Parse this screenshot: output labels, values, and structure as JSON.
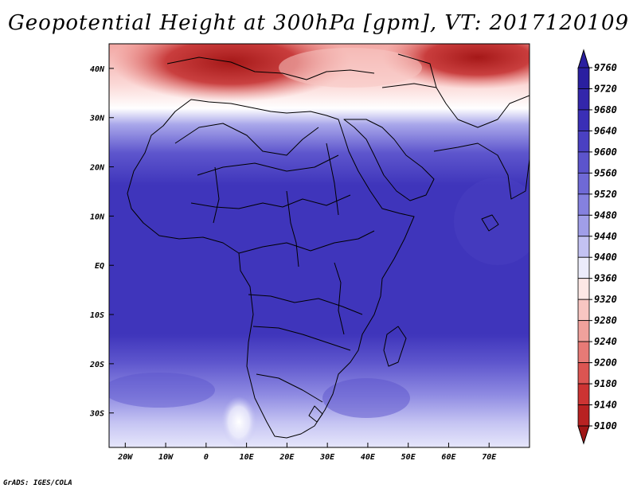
{
  "title": "Geopotential Height at 300hPa [gpm], VT: 2017120109",
  "credit": "GrADS: IGES/COLA",
  "map": {
    "lon_range": [
      -24,
      80
    ],
    "lat_range": [
      -37,
      45
    ],
    "x_ticks": [
      {
        "lon": -20,
        "label": "20W"
      },
      {
        "lon": -10,
        "label": "10W"
      },
      {
        "lon": 0,
        "label": "0"
      },
      {
        "lon": 10,
        "label": "10E"
      },
      {
        "lon": 20,
        "label": "20E"
      },
      {
        "lon": 30,
        "label": "30E"
      },
      {
        "lon": 40,
        "label": "40E"
      },
      {
        "lon": 50,
        "label": "50E"
      },
      {
        "lon": 60,
        "label": "60E"
      },
      {
        "lon": 70,
        "label": "70E"
      }
    ],
    "y_ticks": [
      {
        "lat": 40,
        "label": "40N"
      },
      {
        "lat": 30,
        "label": "30N"
      },
      {
        "lat": 20,
        "label": "20N"
      },
      {
        "lat": 10,
        "label": "10N"
      },
      {
        "lat": 0,
        "label": "EQ"
      },
      {
        "lat": -10,
        "label": "10S"
      },
      {
        "lat": -20,
        "label": "20S"
      },
      {
        "lat": -30,
        "label": "30S"
      }
    ]
  },
  "colorbar": {
    "levels": [
      9760,
      9720,
      9680,
      9640,
      9600,
      9560,
      9520,
      9480,
      9440,
      9400,
      9360,
      9320,
      9280,
      9240,
      9200,
      9180,
      9140,
      9100
    ],
    "colors": [
      "#2a1fa0",
      "#3326ab",
      "#3a2fb6",
      "#4a40c2",
      "#5c54cc",
      "#6f69d6",
      "#8581df",
      "#a09ee8",
      "#c3c2f2",
      "#ececfb",
      "#fde8e6",
      "#f8c6c2",
      "#f0a19c",
      "#e77a76",
      "#dc5552",
      "#cc3433",
      "#b82222",
      "#a01616"
    ]
  }
}
